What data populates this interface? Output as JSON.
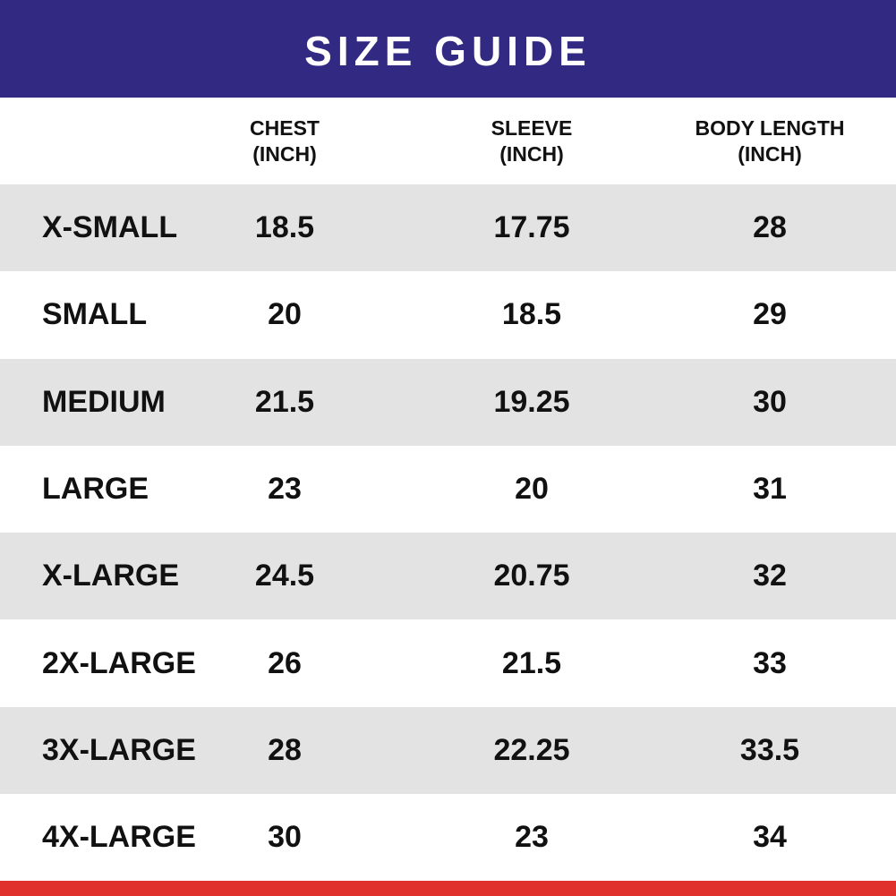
{
  "title": "SIZE GUIDE",
  "colors": {
    "title_bar": "#322a82",
    "row_shade": "#e3e3e3",
    "bottom_bar": "#e0312d"
  },
  "columns": [
    {
      "line1": "CHEST",
      "line2": "(INCH)"
    },
    {
      "line1": "SLEEVE",
      "line2": "(INCH)"
    },
    {
      "line1": "BODY LENGTH",
      "line2": "(INCH)"
    }
  ],
  "rows": [
    {
      "size": "X-SMALL",
      "chest": "18.5",
      "sleeve": "17.75",
      "body": "28"
    },
    {
      "size": "SMALL",
      "chest": "20",
      "sleeve": "18.5",
      "body": "29"
    },
    {
      "size": "MEDIUM",
      "chest": "21.5",
      "sleeve": "19.25",
      "body": "30"
    },
    {
      "size": "LARGE",
      "chest": "23",
      "sleeve": "20",
      "body": "31"
    },
    {
      "size": "X-LARGE",
      "chest": "24.5",
      "sleeve": "20.75",
      "body": "32"
    },
    {
      "size": "2X-LARGE",
      "chest": "26",
      "sleeve": "21.5",
      "body": "33"
    },
    {
      "size": "3X-LARGE",
      "chest": "28",
      "sleeve": "22.25",
      "body": "33.5"
    },
    {
      "size": "4X-LARGE",
      "chest": "30",
      "sleeve": "23",
      "body": "34"
    }
  ]
}
